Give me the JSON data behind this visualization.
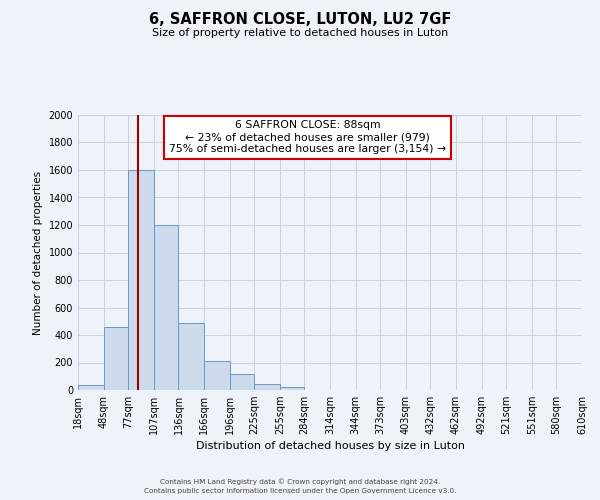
{
  "title": "6, SAFFRON CLOSE, LUTON, LU2 7GF",
  "subtitle": "Size of property relative to detached houses in Luton",
  "xlabel": "Distribution of detached houses by size in Luton",
  "ylabel": "Number of detached properties",
  "bar_color": "#ccdaeb",
  "bar_edge_color": "#6699cc",
  "bin_edges": [
    18,
    48,
    77,
    107,
    136,
    166,
    196,
    225,
    255,
    284,
    314,
    344,
    373,
    403,
    432,
    462,
    492,
    521,
    551,
    580,
    610
  ],
  "bar_heights": [
    35,
    460,
    1600,
    1200,
    490,
    210,
    120,
    45,
    20,
    0,
    0,
    0,
    0,
    0,
    0,
    0,
    0,
    0,
    0,
    0
  ],
  "vline_x": 88,
  "vline_color": "#990000",
  "annotation_text": "6 SAFFRON CLOSE: 88sqm\n← 23% of detached houses are smaller (979)\n75% of semi-detached houses are larger (3,154) →",
  "annotation_box_color": "#ffffff",
  "annotation_box_edge": "#cc0000",
  "ylim": [
    0,
    2000
  ],
  "yticks": [
    0,
    200,
    400,
    600,
    800,
    1000,
    1200,
    1400,
    1600,
    1800,
    2000
  ],
  "tick_labels": [
    "18sqm",
    "48sqm",
    "77sqm",
    "107sqm",
    "136sqm",
    "166sqm",
    "196sqm",
    "225sqm",
    "255sqm",
    "284sqm",
    "314sqm",
    "344sqm",
    "373sqm",
    "403sqm",
    "432sqm",
    "462sqm",
    "492sqm",
    "521sqm",
    "551sqm",
    "580sqm",
    "610sqm"
  ],
  "footer1": "Contains HM Land Registry data © Crown copyright and database right 2024.",
  "footer2": "Contains public sector information licensed under the Open Government Licence v3.0.",
  "background_color": "#eef2f9",
  "grid_color": "#c8d0e0"
}
